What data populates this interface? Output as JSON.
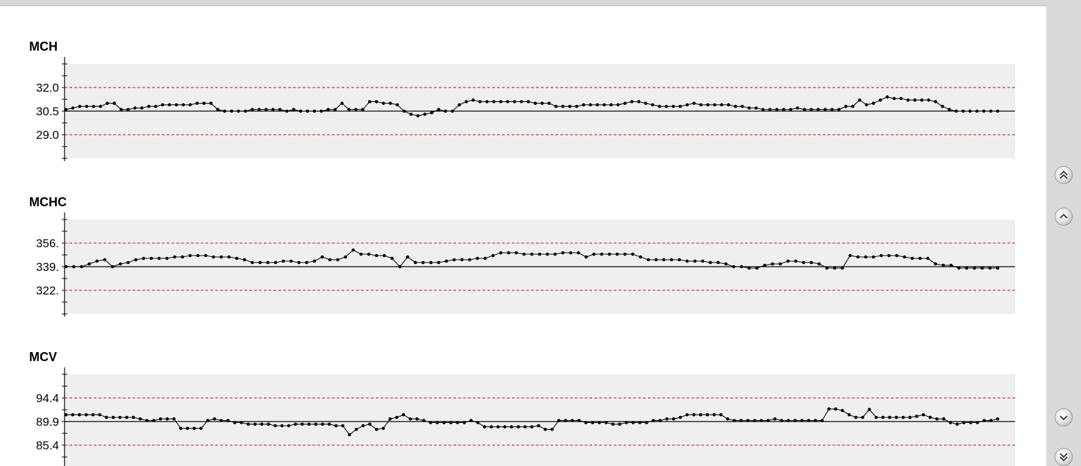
{
  "window": {
    "accent": "#000000",
    "limit_color": "#cc0000",
    "plot_background": "#efefef",
    "sidebar_color": "#dadada"
  },
  "nav": {
    "buttons": [
      {
        "name": "scroll-top-button",
        "icon": "double-chevron-up-icon"
      },
      {
        "name": "scroll-up-button",
        "icon": "chevron-up-icon"
      },
      {
        "name": "scroll-down-button",
        "icon": "chevron-down-icon"
      },
      {
        "name": "scroll-bottom-button",
        "icon": "double-chevron-down-icon"
      }
    ]
  },
  "chart_data": [
    {
      "type": "line",
      "title": "MCH",
      "xlabel": "",
      "ylabel": "",
      "grid": false,
      "center": 30.5,
      "upper_limit": 32.0,
      "lower_limit": 29.0,
      "ytick_labels": [
        "32.0",
        "30.5",
        "29.0"
      ],
      "ylim": [
        27.5,
        33.5
      ],
      "values": [
        30.6,
        30.7,
        30.8,
        30.8,
        30.8,
        30.8,
        31.0,
        31.0,
        30.6,
        30.6,
        30.7,
        30.7,
        30.8,
        30.8,
        30.9,
        30.9,
        30.9,
        30.9,
        30.9,
        31.0,
        31.0,
        31.0,
        30.6,
        30.5,
        30.5,
        30.5,
        30.5,
        30.6,
        30.6,
        30.6,
        30.6,
        30.6,
        30.5,
        30.6,
        30.5,
        30.5,
        30.5,
        30.5,
        30.6,
        30.6,
        31.0,
        30.6,
        30.6,
        30.6,
        31.1,
        31.1,
        31.0,
        31.0,
        30.9,
        30.5,
        30.3,
        30.2,
        30.3,
        30.4,
        30.6,
        30.5,
        30.5,
        30.9,
        31.1,
        31.2,
        31.1,
        31.1,
        31.1,
        31.1,
        31.1,
        31.1,
        31.1,
        31.1,
        31.0,
        31.0,
        31.0,
        30.8,
        30.8,
        30.8,
        30.8,
        30.9,
        30.9,
        30.9,
        30.9,
        30.9,
        30.9,
        31.0,
        31.1,
        31.1,
        31.0,
        30.9,
        30.8,
        30.8,
        30.8,
        30.8,
        30.9,
        31.0,
        30.9,
        30.9,
        30.9,
        30.9,
        30.9,
        30.8,
        30.8,
        30.7,
        30.7,
        30.6,
        30.6,
        30.6,
        30.6,
        30.6,
        30.7,
        30.6,
        30.6,
        30.6,
        30.6,
        30.6,
        30.6,
        30.8,
        30.8,
        31.2,
        30.9,
        31.0,
        31.2,
        31.4,
        31.3,
        31.3,
        31.2,
        31.2,
        31.2,
        31.2,
        31.1,
        30.8,
        30.6,
        30.5,
        30.5,
        30.5,
        30.5,
        30.5,
        30.5,
        30.5
      ]
    },
    {
      "type": "line",
      "title": "MCHC",
      "xlabel": "",
      "ylabel": "",
      "grid": false,
      "center": 339,
      "upper_limit": 356,
      "lower_limit": 322,
      "ytick_labels": [
        "356.",
        "339.",
        "322."
      ],
      "ylim": [
        305,
        373
      ],
      "values": [
        339,
        339,
        339,
        341,
        343,
        344,
        339,
        341,
        342,
        344,
        345,
        345,
        345,
        345,
        346,
        346,
        347,
        347,
        347,
        346,
        346,
        346,
        345,
        344,
        342,
        342,
        342,
        342,
        343,
        343,
        342,
        342,
        343,
        346,
        344,
        344,
        346,
        351,
        348,
        348,
        347,
        347,
        345,
        339,
        346,
        342,
        342,
        342,
        342,
        343,
        344,
        344,
        344,
        345,
        345,
        347,
        349,
        349,
        349,
        348,
        348,
        348,
        348,
        348,
        349,
        349,
        349,
        346,
        348,
        348,
        348,
        348,
        348,
        348,
        346,
        344,
        344,
        344,
        344,
        344,
        343,
        343,
        343,
        342,
        342,
        341,
        339,
        339,
        338,
        338,
        340,
        341,
        341,
        343,
        343,
        342,
        342,
        341,
        338,
        338,
        338,
        347,
        346,
        346,
        346,
        347,
        347,
        347,
        346,
        345,
        345,
        345,
        341,
        340,
        340,
        338,
        338,
        338,
        338,
        338,
        338
      ]
    },
    {
      "type": "line",
      "title": "MCV",
      "xlabel": "",
      "ylabel": "",
      "grid": false,
      "center": 89.9,
      "upper_limit": 94.4,
      "lower_limit": 85.4,
      "ytick_labels": [
        "94.4",
        "89.9",
        "85.4"
      ],
      "ylim": [
        80.9,
        98.9
      ],
      "values": [
        91.2,
        91.2,
        91.2,
        91.2,
        91.2,
        91.2,
        90.7,
        90.7,
        90.7,
        90.7,
        90.7,
        90.4,
        90.1,
        90.1,
        90.4,
        90.4,
        90.4,
        88.6,
        88.6,
        88.6,
        88.6,
        90.1,
        90.4,
        90.1,
        90.1,
        89.7,
        89.7,
        89.4,
        89.4,
        89.4,
        89.4,
        89.1,
        89.1,
        89.1,
        89.4,
        89.4,
        89.4,
        89.4,
        89.4,
        89.4,
        89.1,
        89.1,
        87.4,
        88.4,
        89.1,
        89.4,
        88.4,
        88.6,
        90.4,
        90.7,
        91.2,
        90.4,
        90.4,
        90.1,
        89.7,
        89.7,
        89.7,
        89.7,
        89.7,
        89.7,
        90.1,
        89.7,
        88.9,
        88.9,
        88.9,
        88.9,
        88.9,
        88.9,
        88.9,
        88.9,
        89.1,
        88.4,
        88.4,
        90.1,
        90.1,
        90.1,
        90.1,
        89.7,
        89.7,
        89.7,
        89.7,
        89.4,
        89.4,
        89.7,
        89.7,
        89.7,
        89.7,
        90.1,
        90.1,
        90.4,
        90.4,
        90.7,
        91.2,
        91.2,
        91.2,
        91.2,
        91.2,
        91.2,
        90.4,
        90.1,
        90.1,
        90.1,
        90.1,
        90.1,
        90.1,
        90.4,
        90.1,
        90.1,
        90.1,
        90.1,
        90.1,
        90.1,
        90.1,
        92.3,
        92.3,
        92.0,
        91.2,
        90.7,
        90.7,
        92.2,
        90.7,
        90.7,
        90.7,
        90.7,
        90.7,
        90.7,
        90.9,
        91.2,
        90.7,
        90.4,
        90.4,
        89.7,
        89.4,
        89.7,
        89.7,
        89.7,
        90.1,
        90.1,
        90.4
      ]
    }
  ]
}
